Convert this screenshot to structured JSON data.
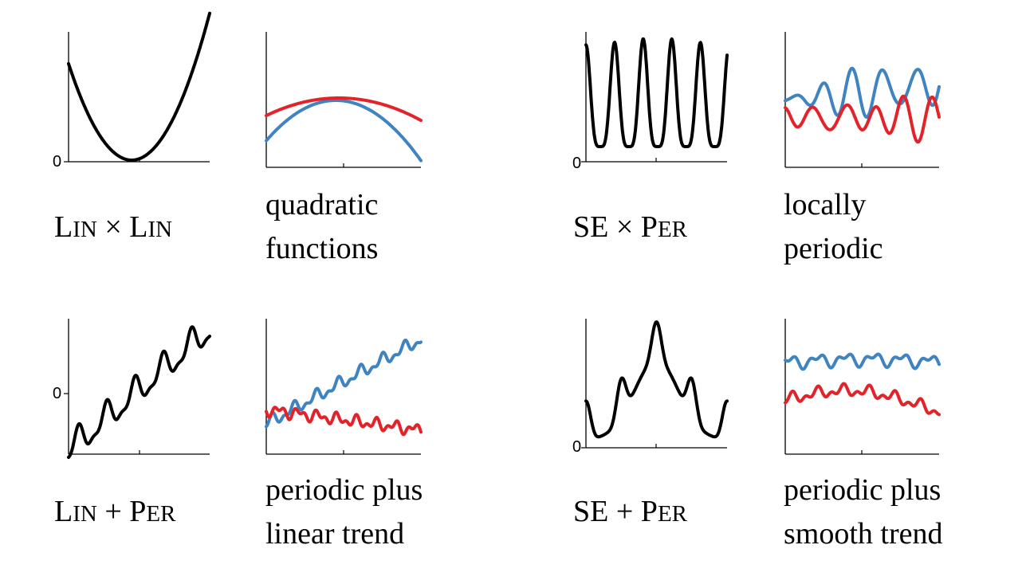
{
  "colors": {
    "kernel": "#000000",
    "sample_blue": "#3f84c1",
    "sample_red": "#e3232a"
  },
  "panels": [
    {
      "id": "lin-x-lin",
      "kernel_label": {
        "part1_big": "L",
        "part1_small": "IN",
        "op": " × ",
        "part2_big": "L",
        "part2_small": "IN"
      },
      "description": [
        "quadratic",
        "functions"
      ],
      "zero_label": "0"
    },
    {
      "id": "se-x-per",
      "kernel_label": {
        "part1_big": "SE",
        "part1_small": "",
        "op": " × ",
        "part2_big": "P",
        "part2_small": "ER"
      },
      "description": [
        "locally",
        "periodic"
      ],
      "zero_label": "0"
    },
    {
      "id": "lin-plus-per",
      "kernel_label": {
        "part1_big": "L",
        "part1_small": "IN",
        "op": " + ",
        "part2_big": "P",
        "part2_small": "ER"
      },
      "description": [
        "periodic plus",
        "linear trend"
      ],
      "zero_label": "0"
    },
    {
      "id": "se-plus-per",
      "kernel_label": {
        "part1_big": "SE",
        "part1_small": "",
        "op": " + ",
        "part2_big": "P",
        "part2_small": "ER"
      },
      "description": [
        "periodic plus",
        "smooth trend"
      ],
      "zero_label": "0"
    }
  ]
}
